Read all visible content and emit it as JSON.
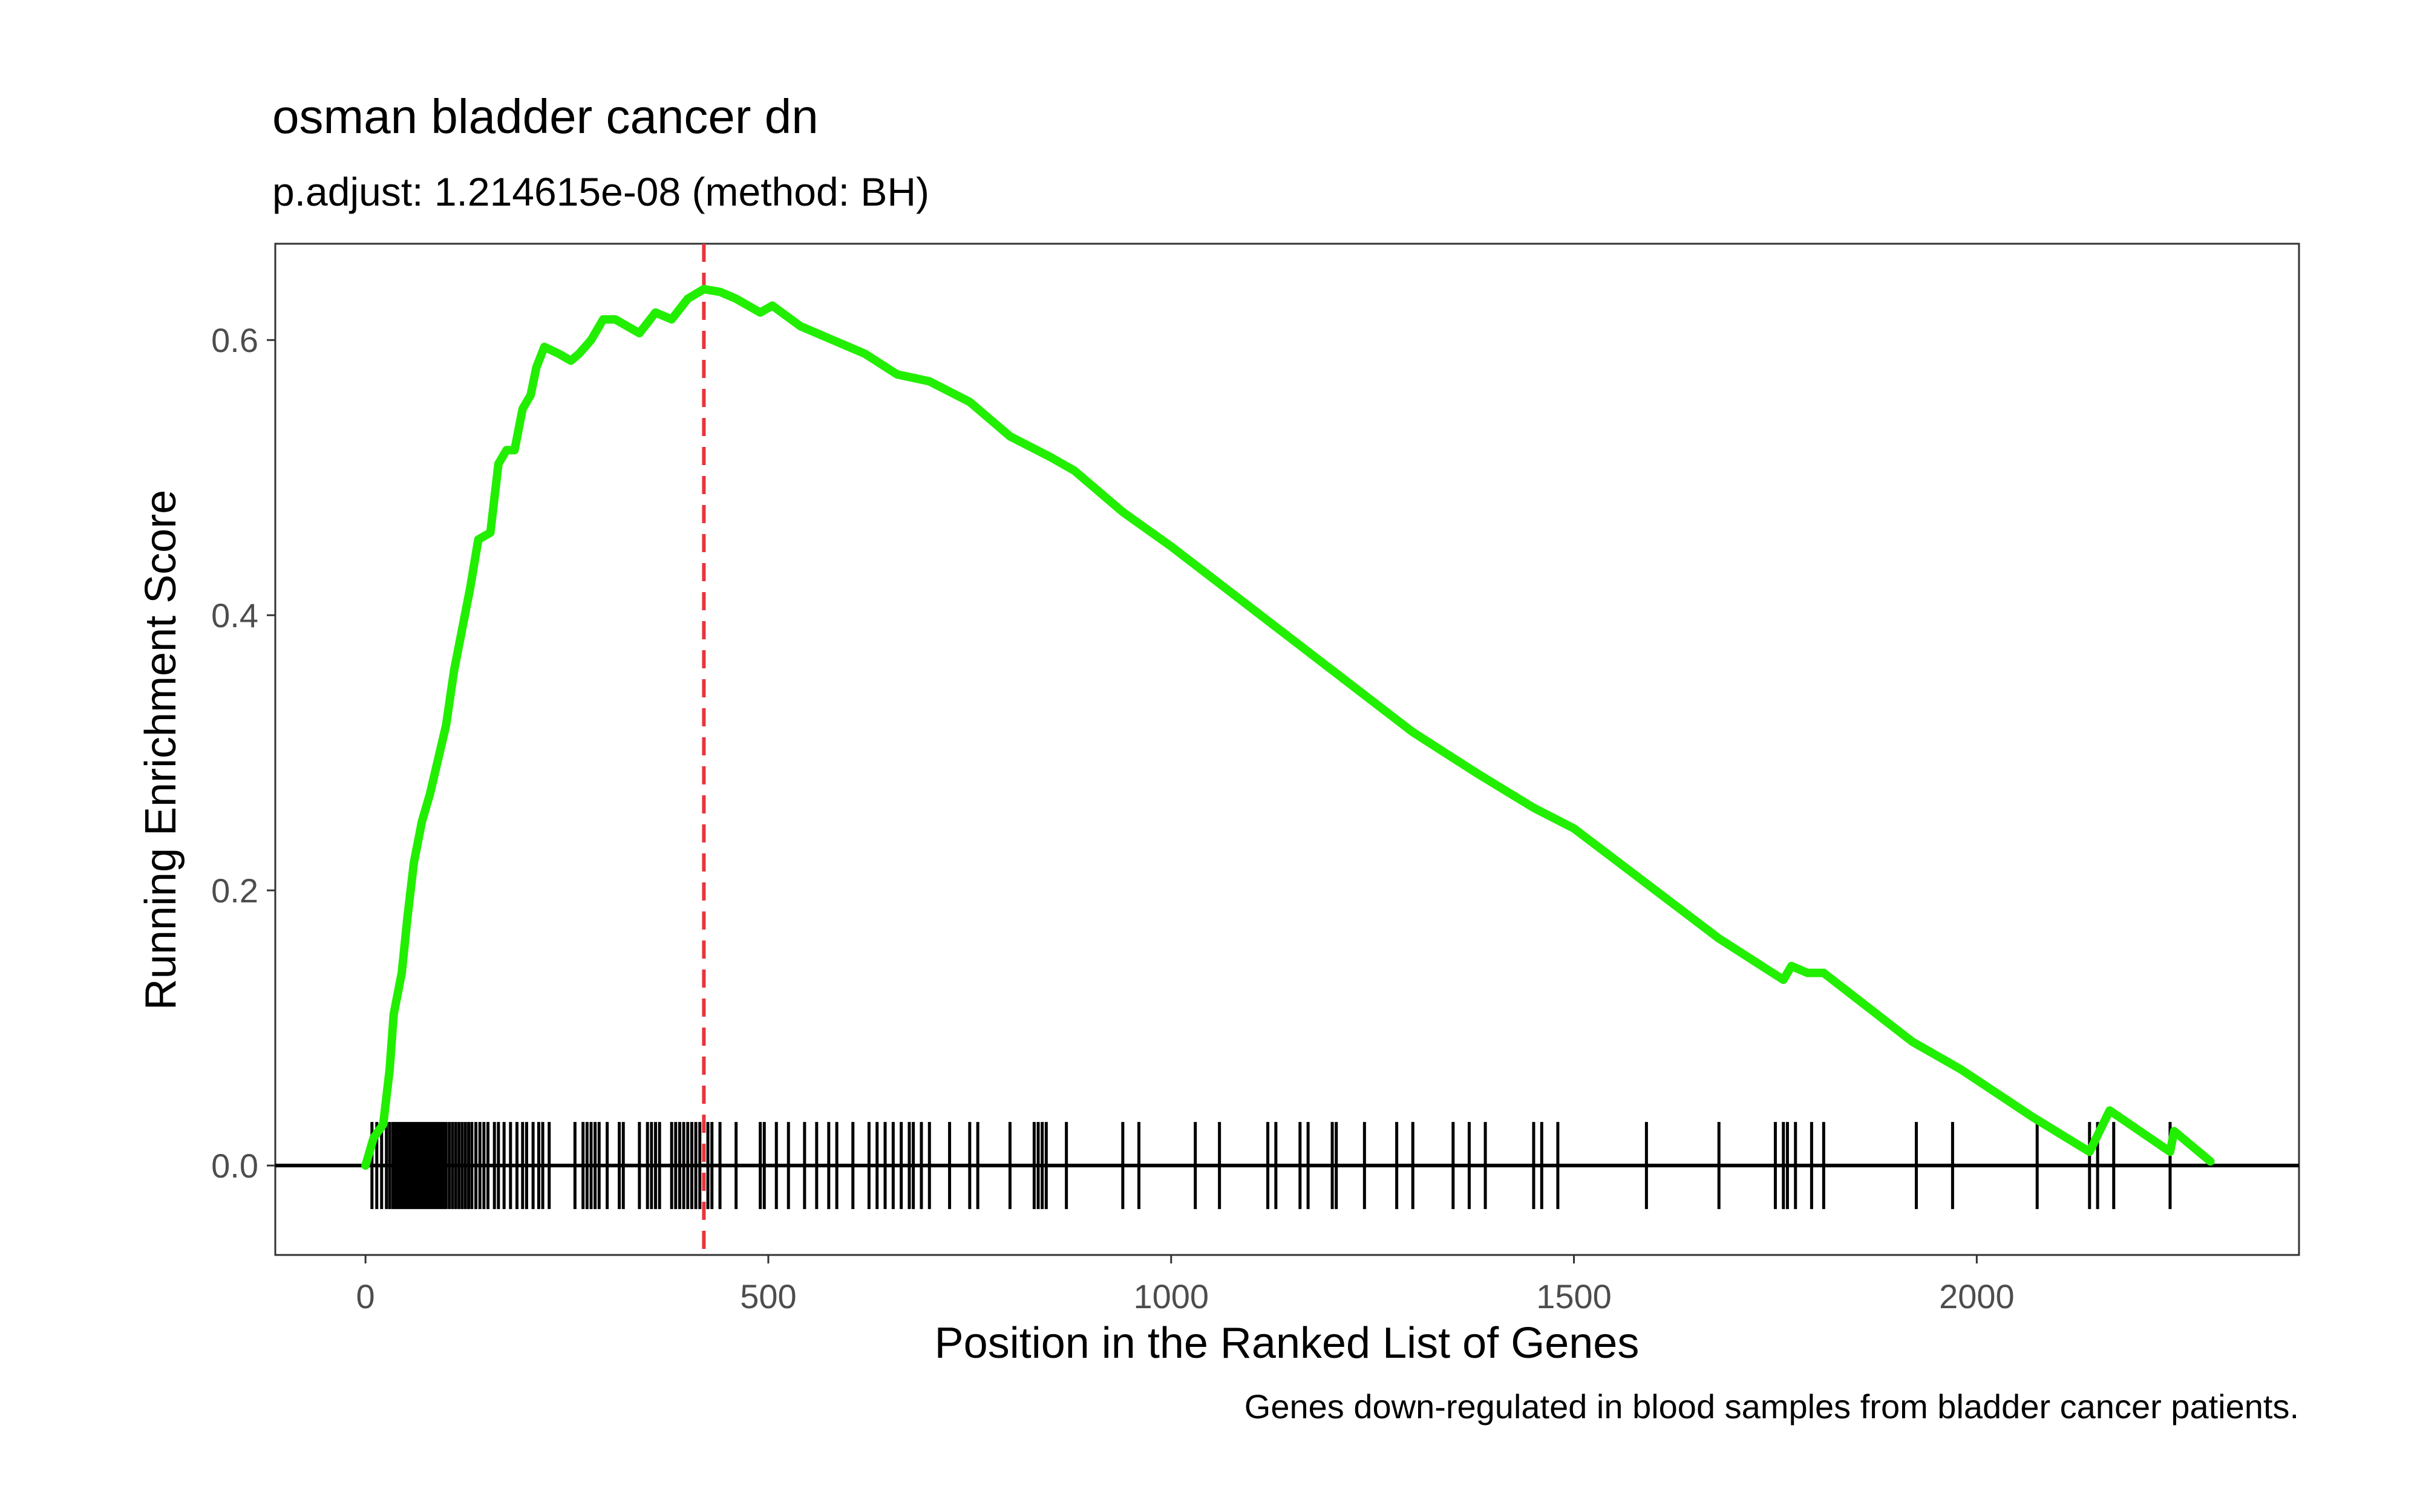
{
  "chart_data": {
    "type": "line",
    "title": "osman bladder cancer dn",
    "subtitle": "p.adjust: 1.214615e-08 (method: BH)",
    "xlabel": "Position in the Ranked List of Genes",
    "ylabel": "Running Enrichment Score",
    "caption": "Genes down-regulated in blood samples from bladder cancer patients.",
    "xlim": [
      -112,
      2400
    ],
    "ylim": [
      -0.065,
      0.67
    ],
    "x_ticks": [
      0,
      500,
      1000,
      1500,
      2000
    ],
    "x_tick_labels": [
      "0",
      "500",
      "1000",
      "1500",
      "2000"
    ],
    "y_ticks": [
      0.0,
      0.2,
      0.4,
      0.6
    ],
    "y_tick_labels": [
      "0.0",
      "0.2",
      "0.4",
      "0.6"
    ],
    "grid": false,
    "legend": "none",
    "peak_position": 420,
    "series": [
      {
        "line_color": "#22ee00",
        "points": [
          [
            0,
            0.0
          ],
          [
            10,
            0.02
          ],
          [
            22,
            0.03
          ],
          [
            30,
            0.07
          ],
          [
            35,
            0.11
          ],
          [
            45,
            0.14
          ],
          [
            52,
            0.18
          ],
          [
            60,
            0.22
          ],
          [
            70,
            0.25
          ],
          [
            80,
            0.27
          ],
          [
            88,
            0.29
          ],
          [
            100,
            0.32
          ],
          [
            110,
            0.36
          ],
          [
            120,
            0.39
          ],
          [
            130,
            0.42
          ],
          [
            140,
            0.455
          ],
          [
            155,
            0.46
          ],
          [
            165,
            0.51
          ],
          [
            175,
            0.52
          ],
          [
            185,
            0.52
          ],
          [
            195,
            0.55
          ],
          [
            205,
            0.56
          ],
          [
            212,
            0.58
          ],
          [
            222,
            0.595
          ],
          [
            240,
            0.59
          ],
          [
            255,
            0.585
          ],
          [
            265,
            0.59
          ],
          [
            280,
            0.6
          ],
          [
            295,
            0.615
          ],
          [
            310,
            0.615
          ],
          [
            325,
            0.61
          ],
          [
            340,
            0.605
          ],
          [
            360,
            0.62
          ],
          [
            380,
            0.615
          ],
          [
            400,
            0.63
          ],
          [
            420,
            0.637
          ],
          [
            440,
            0.635
          ],
          [
            460,
            0.63
          ],
          [
            490,
            0.62
          ],
          [
            505,
            0.625
          ],
          [
            540,
            0.61
          ],
          [
            580,
            0.6
          ],
          [
            620,
            0.59
          ],
          [
            660,
            0.575
          ],
          [
            700,
            0.57
          ],
          [
            750,
            0.555
          ],
          [
            800,
            0.53
          ],
          [
            850,
            0.515
          ],
          [
            880,
            0.505
          ],
          [
            940,
            0.475
          ],
          [
            1000,
            0.45
          ],
          [
            1100,
            0.405
          ],
          [
            1200,
            0.36
          ],
          [
            1300,
            0.315
          ],
          [
            1380,
            0.285
          ],
          [
            1450,
            0.26
          ],
          [
            1500,
            0.245
          ],
          [
            1590,
            0.205
          ],
          [
            1680,
            0.165
          ],
          [
            1760,
            0.135
          ],
          [
            1770,
            0.145
          ],
          [
            1790,
            0.14
          ],
          [
            1810,
            0.14
          ],
          [
            1920,
            0.09
          ],
          [
            1980,
            0.07
          ],
          [
            2070,
            0.035
          ],
          [
            2140,
            0.01
          ],
          [
            2165,
            0.04
          ],
          [
            2240,
            0.01
          ],
          [
            2245,
            0.025
          ],
          [
            2290,
            0.003
          ]
        ]
      }
    ],
    "gene_hits": [
      8,
      14,
      20,
      26,
      30,
      34,
      37,
      40,
      43,
      46,
      49,
      52,
      55,
      58,
      61,
      64,
      67,
      70,
      73,
      76,
      79,
      82,
      85,
      88,
      91,
      94,
      97,
      100,
      104,
      108,
      112,
      116,
      120,
      124,
      128,
      132,
      137,
      142,
      147,
      152,
      160,
      165,
      172,
      180,
      188,
      195,
      200,
      208,
      215,
      220,
      228,
      260,
      270,
      275,
      280,
      285,
      290,
      300,
      315,
      320,
      340,
      350,
      355,
      360,
      365,
      380,
      385,
      390,
      395,
      400,
      405,
      410,
      415,
      425,
      430,
      440,
      460,
      490,
      495,
      510,
      525,
      545,
      560,
      575,
      585,
      605,
      625,
      635,
      645,
      655,
      665,
      675,
      680,
      690,
      700,
      725,
      750,
      760,
      800,
      830,
      835,
      840,
      845,
      870,
      940,
      960,
      1030,
      1060,
      1120,
      1130,
      1160,
      1170,
      1200,
      1205,
      1240,
      1280,
      1300,
      1350,
      1370,
      1390,
      1450,
      1460,
      1480,
      1590,
      1680,
      1750,
      1760,
      1765,
      1775,
      1795,
      1810,
      1925,
      1970,
      2075,
      2140,
      2150,
      2170,
      2240
    ],
    "colors": {
      "running_score": "#22ee00",
      "peak_line": "#e8343a",
      "hits": "#000000",
      "zero_line": "#000000"
    }
  }
}
